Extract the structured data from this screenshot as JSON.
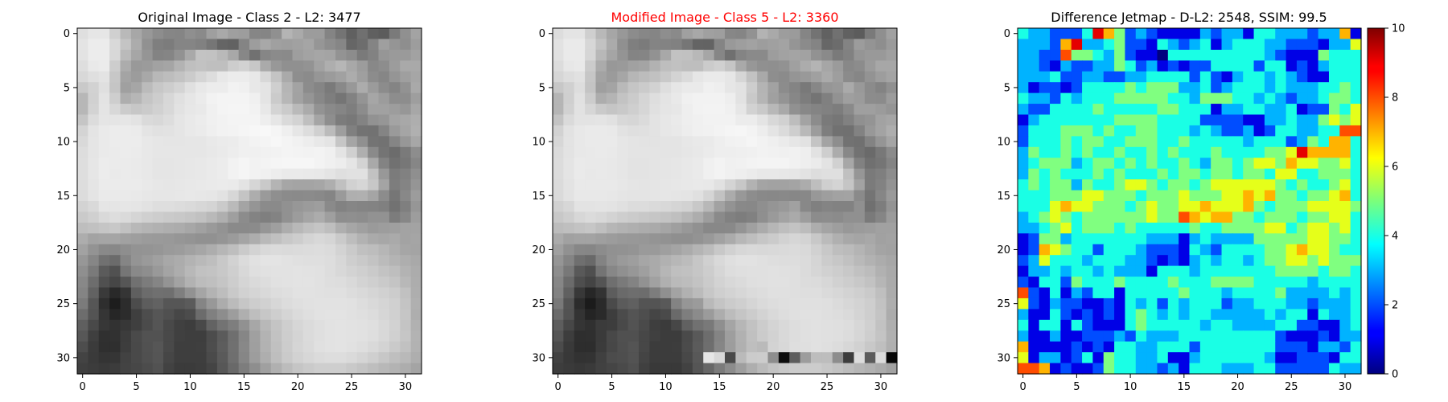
{
  "chart_data": [
    {
      "type": "heatmap",
      "panel": "original",
      "title": "Original Image - Class 2 - L2: 3477",
      "title_color": "#000000",
      "colormap": "gray",
      "x_ticks": [
        0,
        5,
        10,
        15,
        20,
        25,
        30
      ],
      "y_ticks": [
        0,
        5,
        10,
        15,
        20,
        25,
        30
      ],
      "xlim": [
        -0.5,
        31.5
      ],
      "ylim": [
        31.5,
        -0.5
      ],
      "grid_size": [
        32,
        32
      ],
      "pixel_values_256": [
        "dfe6e6d0b9a7988d86858f8a9fa99f9d868590b4aa9c9c84746070605c7a90a3",
        "e4ececd9c4ac917f7c858581766562849da8a09ea1a5968d86666d849f958e9d",
        "e3ececd8baa695838592a9c3c2b9a88771868b8a9ea3a6a4938c7a82969a9aa2",
        "dee9ebcdac999ba2a5b3bfc2bfbfcdd2c7aa98909093a2aeb6a89c888d9ca9a9",
        "d8dfe3c7a49ca8b8bdc3cbd5dde8ecece8d8c4aa8e8b969ba1ac9f8c86959fa6",
        "c9d2dfc5a0a6bbc7cdd4e0e8ececf2f0e8e4cfb5a38c857a8998ac9b8c8492a9",
        "b7d1e3ceaeb6c5cdd7e0e6ebf2f4f4f4f0e4cbb7a295887e758294a69c8d8d9e",
        "b7d3e4d8ccc7cbd1d8e2e7e9f0f4f5f5f2e8d4cbbaab938a857e8ca1a19d97a7",
        "c5dce5e5e6e3dad8dde5e9ecf0f2f4f4f4eee6dad3bfa58e7c78839296a4a8ae",
        "d4e4eaececebe4e1e2e5e9ebeff2f3f5f7f8f5efe6ddd0bb9e807372849aa5b0",
        "d9e5eaececece8e6e5e5e6e6e9ebecf0f3f4f7f4f1ede8e4c6a59074728597a7",
        "dde5eaebecebe8e6e6e6e6e6e8eaedf0f0f1f2f4f3f2f3f0e4d0af8a746c7a8d",
        "dee6ecebebeae8e5e5e6e7e8eaecf2f5f2f3f5f6f6f6f3f0ede5d3a983717786",
        "dee6eceaebeae8e5e5e6e7e8eaecf2f5f2f0edeaeae9e8e4dfe1e1c2987b818f",
        "dde5ebebebebe9e7e6e7e8e9eaebeae3d6c9b4a6a4a4a6aec0d1d6c7a47d8495",
        "dce4eaeaeae9e7e6e6e7e8e7e6e2d7c4ad9a8f8b8a8b89859aafb0a58c76889c",
        "d3d9e5e5e6e5e2dededcdad7d4cabaa4958b8a91979b9e8a8286848380727f96",
        "cad0d9dddad5d0cdcac8c5c1b9af9f8c837f83919ca5ac9f8e8f8d92927c879d",
        "bec1c5c8c1b8b4b1aeaca7a19a938a8a8b969fadb8c0c5beafa6a09a9d9fa3a3",
        "ada3a5a5a19e9b9a9996949191959ba4adb9c0c8cdd4d8d5cabdb2aaa7aaa3a5",
        "a29389888e9394969a9ca1a6adb6becad3d9dbdadbdcdddbd3cac0bdb6aea6a4",
        "9786716b85949aa0a8acb3b9bec8d2dbe1e4e4e2e0dfdfddd7cec9c3bbb4aea9",
        "8f7a5b5176898e99a4adb8c1c3c8cfd8dfe1e2e2e3e2e1ddd8d3cfcac3beb3ac",
        "886d504656717c8594a3b2bcbfc5cdd5dadde1e2e3e3e1deddd9d3cfcac4b8ad",
        "84623a29355f6c706f7f92a5b3bdc9d1d5d9dddfe2e2e1e0e0dcd9d5d1ccc1ae",
        "7b562e1d2c4c5d6256565b8598acbbc6cdd1d7dcdfe1e2e2e2e1ddd9d5d0c4b0",
        "6d5435262c3f4d5650474c6c808d9dafbec7ced5dbdfe2e3e3e1dfdcd6d0c6ae",
        "5f493732373f4b5549403d4963737e91a7b8c4ced6dbdfe2e3e2e1dfd9d2c4b1",
        "573f30313c4a525249403e3e4c5b6f86a0b3c2cdd4dbdfe2e3e2e1ded8d0c6b3",
        "4d3b2f2f3d495156493e3e3f4d5d70889fb2c0ccd5dae0e2e3e1ded9d3cac1b2",
        "433a343542495055463e3e3e4a5a6f869daebecad2d7dbdddddad5cfc7bfb9ae",
        "3f3c393c43474c52423b3b3d4457697d8ea0b0bcc5cacececec9c4beb8b3ada4"
      ],
      "colorbar": null
    },
    {
      "type": "heatmap",
      "panel": "modified",
      "title": "Modified Image - Class 5 - L2: 3360",
      "title_color": "#ff0000",
      "colormap": "gray",
      "x_ticks": [
        0,
        5,
        10,
        15,
        20,
        25,
        30
      ],
      "y_ticks": [
        0,
        5,
        10,
        15,
        20,
        25,
        30
      ],
      "xlim": [
        -0.5,
        31.5
      ],
      "ylim": [
        31.5,
        -0.5
      ],
      "grid_size": [
        32,
        32
      ],
      "pixel_values_256": [
        "dde4e4cfb8a6988c87858e8aa0a8a09e878592b3a99d9b85736171615c7a8fa1",
        "e2eaead7c2ab907f7b84838176646384999ea29da0a3958b84676c839c948e9b",
        "e1eaead6b8a594848592a8c2c1b8a68670848a8a9da2a4a2928a7a81959999a0",
        "dce7e9cbab989aa1a4b2bec1bebecbd0c5a997908f92a0acb4a69b888c9ba7a7",
        "d6dde1c6a39ba6b6bcc1c9d3dbe6eaeae6d6c2a98e8b9599a0aa9e8b86939da4",
        "c7d0ddc49fa4b9c5cbd2dee6eaeaf0eee6e2cdb4a28c8479879699aa998b8390",
        "b5cfe1ccadb4c3cbd5dee4e9f0f2f2f2eee2c9b5a094877d7480929f9b8c8b9c",
        "b5d1e2d6cac5c9cfd6e0e5e7eef2f3f3f0e6d2c9b8a9918884817d8a9f9f9b95",
        "c3dae3e3e4e1d8d6dbe3e7eaeef0f2f2f2ecece4d8d1bda38c7a76819094a2a6",
        "d2e2e8eaeae9e2dfe0e3e7e9edf0f1f3f5f6f3ede4dbceb99c7e71708298a3ae",
        "d7e3e8eaeaeae6e4e3e3e4e4e7e9eaeef1f2f5f2efebe6e2c4a38e72708395a5",
        "dbe3e8e9eae9e6e4e4e4e4e4e6e8ebeeeeeff0f2f1f0f1eee2ceac88726a788b",
        "dce4eae9e9e8e6e3e3e4e5e6e8eaf0f3f0f1f3f4f4f4f1eeebe3d1a781707584",
        "dce4eae8e9e8e6e3e3e4e5e6e8eaf0f3f0eeebe8e8e7e6e2dddfdfc0967a7f8d",
        "dbe3e9e9e9e9e7e5e4e5e6e7e8e9e8e1d4c7b2a4a2a2a4acbecfd4c5a27b8293",
        "dae2e8e8e8e7e5e4e4e5e6e5e4e0d5c2ab988d8988898788989ea2a38a74869a",
        "d1d7e3e3e4e3e0dcdcdad8d5d2c8b8a29389888f9599a1888084828290707d94",
        "c8ced7dbd8d3cecbc8c6c3bfb7ad9d8a817d818f9aa3aa9d8c8d8b90907a859b",
        "bcbfc3c6bfb6b2afacaaa59f989188888994a0abb6bec3bcada49e989b9da1a1",
        "aba1a3a39f9c99989794928f8f9399a2abb7bec6cbd2d6d3c8bbb0a8a5a8a1a3",
        "a09187868c9192949a9a9fa4abb4bcc8d1d7d9d8d9dadbd9d1c8bebbb4aca4a2",
        "95846f6983929a9ea6aab1b7bcc6d0d9dfe2e2e0dedddddbd5ccc7c1b9b2aca7",
        "8d78594f748790979faab6bfc1c6cdd6dddfe0e0e1e0dfdbd6d1cdc8c1bcb1aa",
        "866b4e44546f7a8392a1b0babdc3cbd3d8dbdfe0e1e1dfdcdbd7d1cdc8c2b6ab",
        "82603827335d6a6e6d7d90a3b1bbc7cfd3d7dbdde0e0dfdededad7d3cfcabfac",
        "79542c1b2a4a5b6054545983969bb9c4cbcfd5dadddfe0e0e0dfdbd7d3cec2ae",
        "6b5233242a3d4b544e454a6a7e8b9badbcc5ccd3d9dde0e1e1dfdddad4cec4ac",
        "5d4735303b3d49534a3e3b476171798fa5b6c2ccd4d9dde0e1e0dfddd7d0c2af",
        "553d2e2f3a48505047403c3c4a596d849eb1c0cbd2d9dde0e1e0dfdcd6cec4b1",
        "4b392d2d3b474f54473c3c3d4b5b6e869db0bebad3d8dedfe1dfdcd7d1c8bfb0",
        "41383233404c4e53443c3c3c4858e6d849bacbcc8d0d5d9dbdbd8d3cdc5bdb7",
        "3d3a373a41454a50403939394255677b8c9eaebac3c8ccccccc7c2bcb6b1aba2"
      ],
      "colorbar": null
    },
    {
      "type": "heatmap",
      "panel": "difference",
      "title": "Difference Jetmap - D-L2: 2548, SSIM: 99.5",
      "title_color": "#000000",
      "colormap": "jet",
      "x_ticks": [
        0,
        5,
        10,
        15,
        20,
        25,
        30
      ],
      "y_ticks": [
        0,
        5,
        10,
        15,
        20,
        25,
        30
      ],
      "xlim": [
        -0.5,
        31.5
      ],
      "ylim": [
        31.5,
        -0.5
      ],
      "grid_size": [
        32,
        32
      ],
      "values_0_to_10_per_row": [
        "43322249752321111323314433323371",
        "33327933452214323413444332221336",
        "33228554352110444444444321115444",
        "33213223354231212244442441213444",
        "33342233223344442421344343211444",
        "31221244445455533423444343334454",
        "43324344455555443555443432334554",
        "32244445444445544413344334122546",
        "13444444455554444222211334335656",
        "24445554544554443432231244334488",
        "24445455445554454444434442354774",
        "35445454454454544454444556977774",
        "34555345545454454355456657665564",
        "35454445454445455455455466445554",
        "45455354456654554566666654544564",
        "44455566555455565556676755455674",
        "44467665554565566766675455566665",
        "34565455555565587677554555455664",
        "33456455545444445445555664566564",
        "12553444444433313433335555566554",
        "12765442444322214324444556766544",
        "23644434443321213434434556656555",
        "13343443433314443444444455554554",
        "21442544454444544455554444434444",
        "82141324414444454443444453333434",
        "62132211214342434442334443323334",
        "31142121214543434433333434414334",
        "41441421114544444344333344221134",
        "31131122232433344444444421112133",
        "71111212144334442444444422213324",
        "61331241544334113444444311222144",
        "88712112544332314443334422222433"
      ],
      "colorbar": {
        "min": 0,
        "max": 10,
        "ticks": [
          0,
          2,
          4,
          6,
          8,
          10
        ]
      }
    }
  ],
  "colors": {
    "background": "#ffffff",
    "axis": "#000000",
    "title_normal": "#000000",
    "title_modified": "#ff0000"
  }
}
